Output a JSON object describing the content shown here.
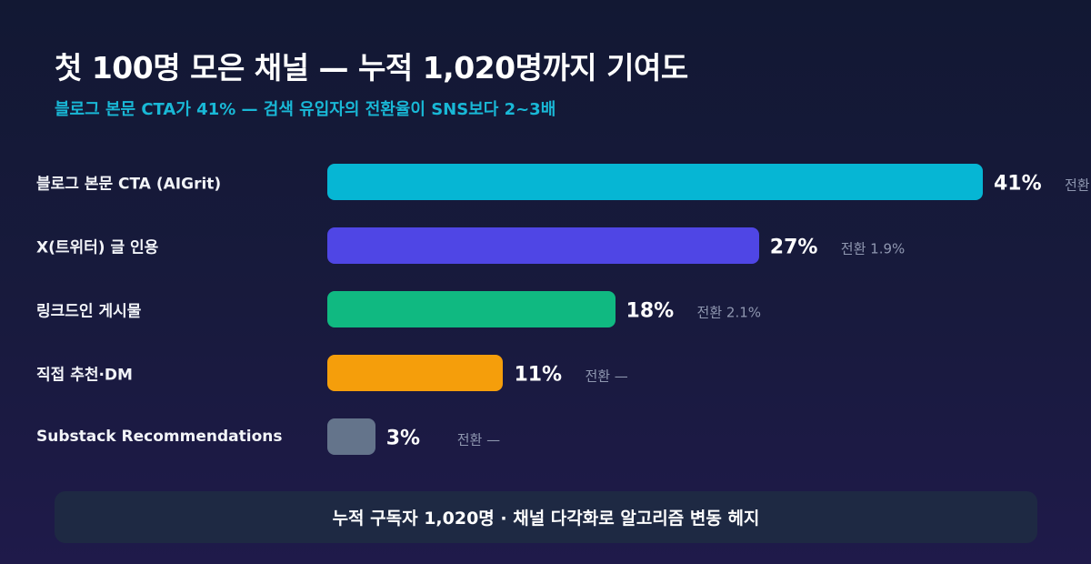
{
  "header": {
    "title": "첫 100명 모은 채널 — 누적 1,020명까지 기여도",
    "subtitle": "블로그 본문 CTA가 41% — 검색 유입자의 전환율이 SNS보다 2~3배"
  },
  "chart_data": {
    "type": "bar",
    "orientation": "horizontal",
    "categories": [
      "블로그 본문 CTA (AIGrit)",
      "X(트위터) 글 인용",
      "링크드인 게시물",
      "직접 추천·DM",
      "Substack Recommendations"
    ],
    "values": [
      41,
      27,
      18,
      11,
      3
    ],
    "value_labels": [
      "41%",
      "27%",
      "18%",
      "11%",
      "3%"
    ],
    "conversion_labels": [
      "전환",
      "전환 1.9%",
      "전환 2.1%",
      "전환 —",
      "전환 —"
    ],
    "colors": [
      "#06b6d4",
      "#4f46e5",
      "#10b981",
      "#f59e0b",
      "#64748b"
    ],
    "xlim": [
      0,
      41
    ],
    "grid": false,
    "legend": "none"
  },
  "footer": {
    "text": "누적 구독자 1,020명 · 채널 다각화로 알고리즘 변동 헤지"
  }
}
